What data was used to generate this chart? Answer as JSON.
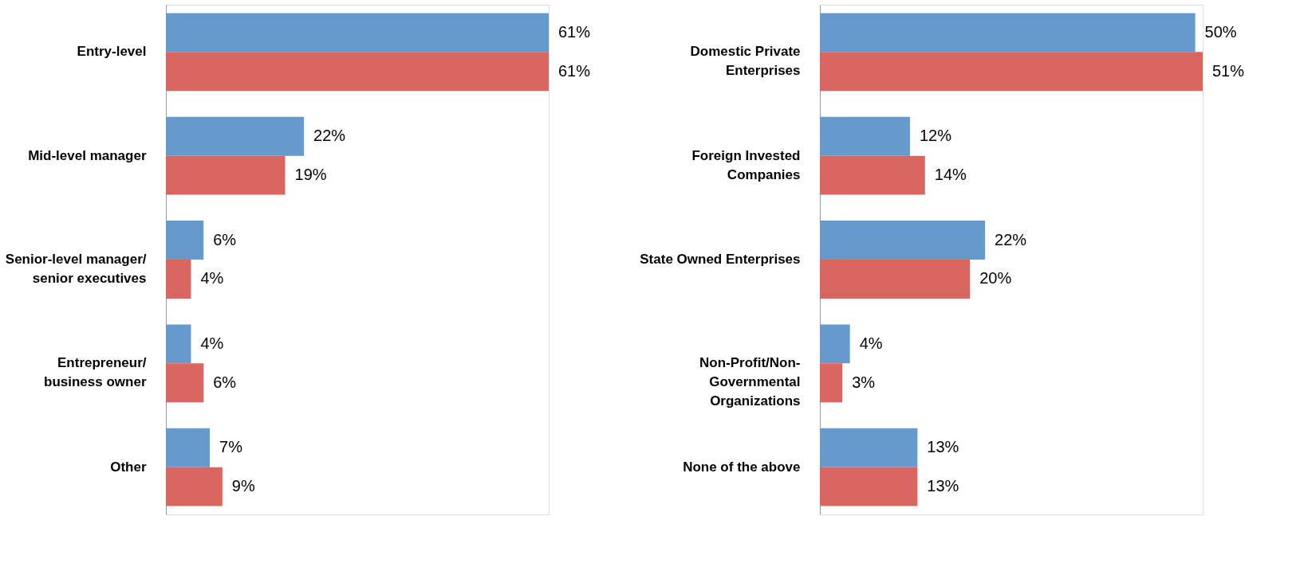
{
  "chart_data": [
    {
      "type": "bar",
      "orientation": "horizontal",
      "categories": [
        "Entry-level",
        "Mid-level manager",
        "Senior-level manager/\nsenior executives",
        "Entrepreneur/\nbusiness owner",
        "Other"
      ],
      "series": [
        {
          "color": "#6699cc",
          "values": [
            61,
            22,
            6,
            4,
            7
          ],
          "value_labels": [
            "61%",
            "22%",
            "6%",
            "4%",
            "7%"
          ]
        },
        {
          "color": "#d9675f",
          "values": [
            61,
            19,
            4,
            6,
            9
          ],
          "value_labels": [
            "61%",
            "19%",
            "4%",
            "6%",
            "9%"
          ]
        }
      ],
      "legend": false,
      "grid": false,
      "tick_labels": "y"
    },
    {
      "type": "bar",
      "orientation": "horizontal",
      "categories": [
        "Domestic Private\nEnterprises",
        "Foreign Invested\nCompanies",
        "State Owned Enterprises",
        "Non-Profit/Non-\nGovernmental\nOrganizations",
        "None of the above"
      ],
      "series": [
        {
          "color": "#6699cc",
          "values": [
            50,
            12,
            22,
            4,
            13
          ],
          "value_labels": [
            "50%",
            "12%",
            "22%",
            "4%",
            "13%"
          ]
        },
        {
          "color": "#d9675f",
          "values": [
            51,
            14,
            20,
            3,
            13
          ],
          "value_labels": [
            "51%",
            "14%",
            "20%",
            "3%",
            "13%"
          ]
        }
      ],
      "legend": false,
      "grid": false,
      "tick_labels": "y"
    }
  ]
}
